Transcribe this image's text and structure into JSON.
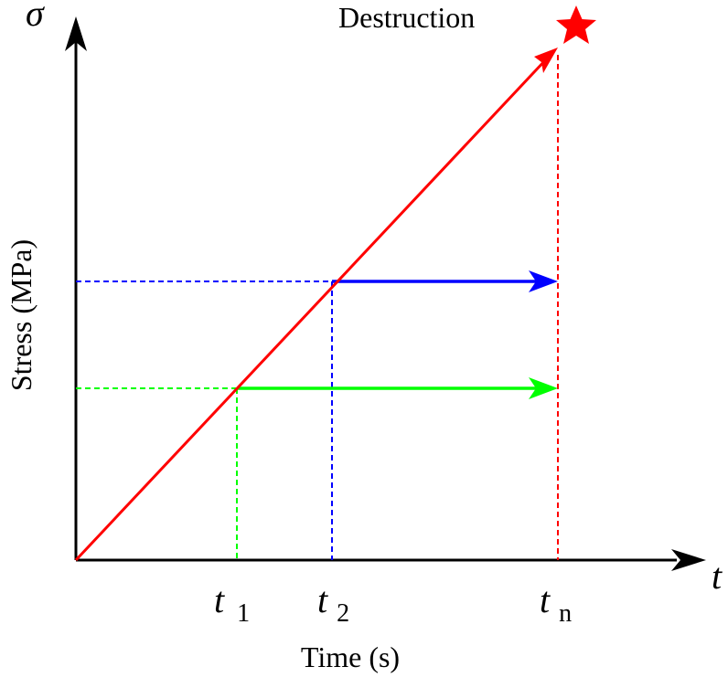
{
  "axes": {
    "y_symbol": "σ",
    "x_symbol": "t",
    "y_label": "Stress (MPa)",
    "x_label": "Time (s)"
  },
  "annotations": {
    "destruction": "Destruction"
  },
  "ticks": {
    "t1": {
      "sym": "t",
      "sub": "1"
    },
    "t2": {
      "sym": "t",
      "sub": "2"
    },
    "tn": {
      "sym": "t",
      "sub": "n"
    }
  },
  "colors": {
    "ramp": "#ff0000",
    "hold_t2": "#0000ff",
    "hold_t1": "#00ff00",
    "axis": "#000000",
    "star": "#ff0000"
  },
  "icons": {
    "star": "destruction-star-icon"
  }
}
